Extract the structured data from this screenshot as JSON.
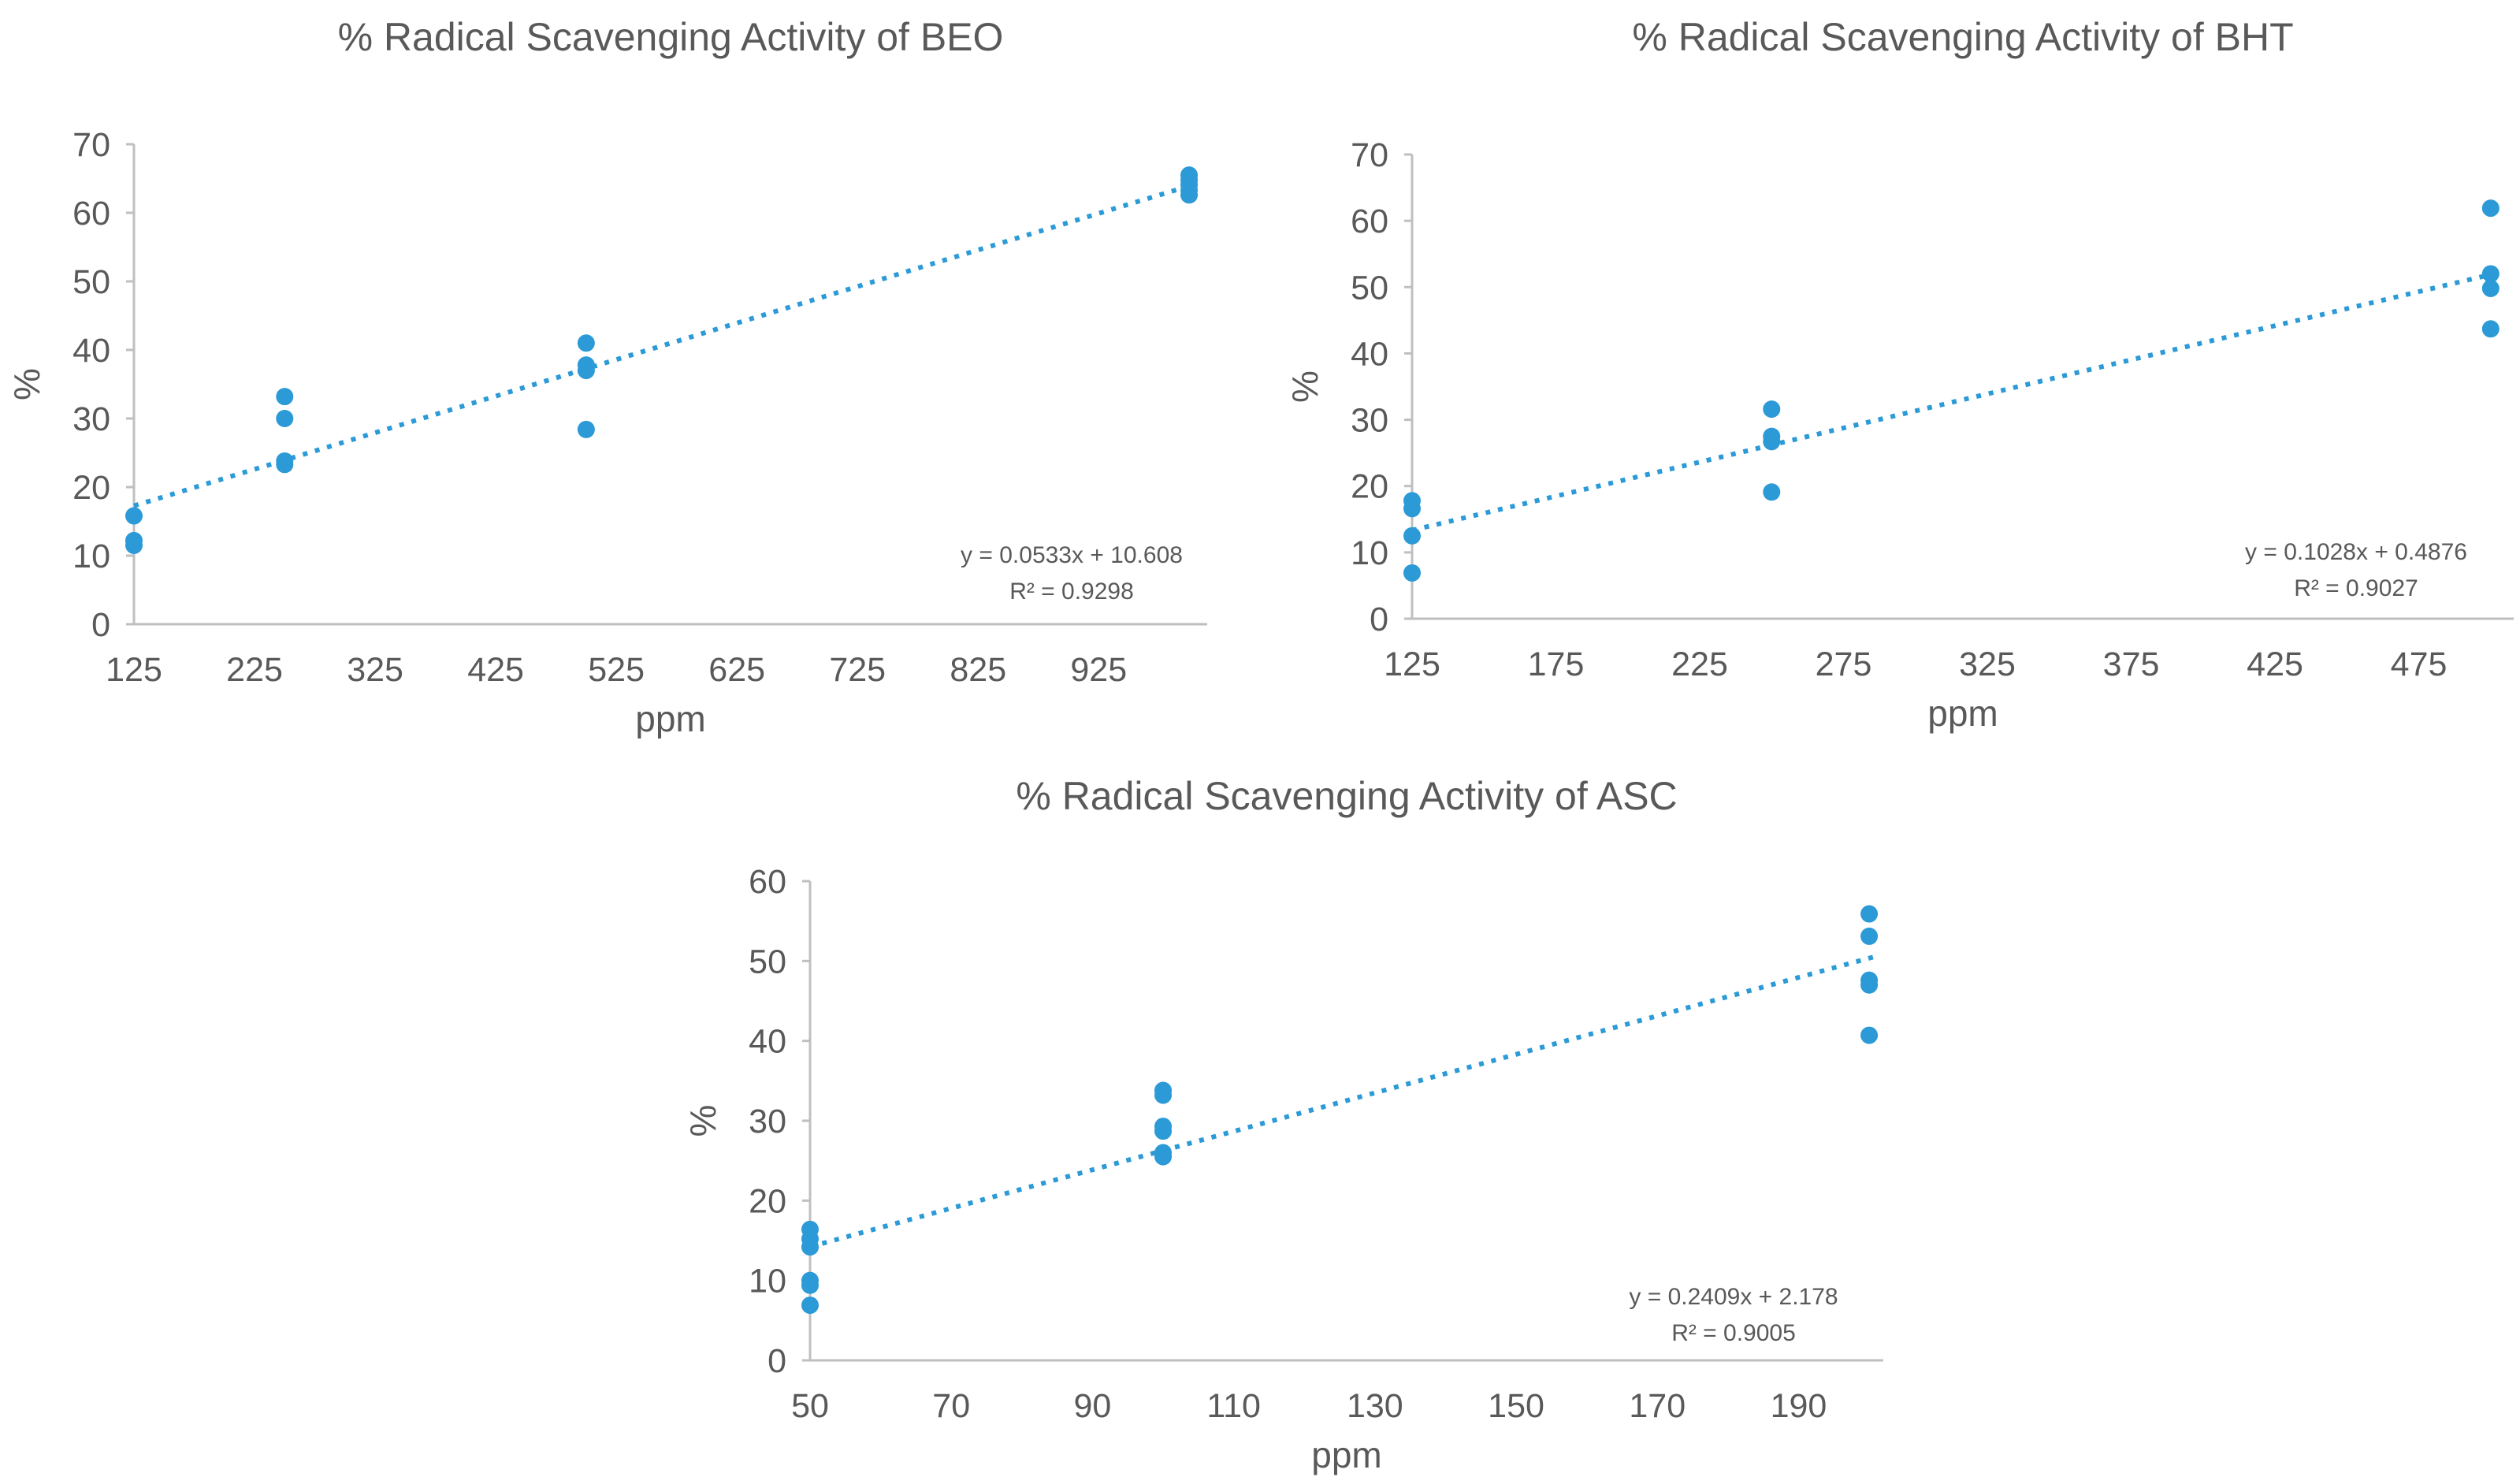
{
  "page": {
    "background": "#ffffff"
  },
  "colors": {
    "accent": "#2b9ad6",
    "text": "#595959",
    "axis_line": "#bfbfbf",
    "tick_text": "#595959"
  },
  "chart_data": [
    {
      "id": "beo",
      "type": "scatter",
      "title": "% Radical Scavenging Activity of BEO",
      "xlabel": "ppm",
      "ylabel": "%",
      "xlim": [
        125,
        1015
      ],
      "ylim": [
        0,
        70
      ],
      "xticks": [
        125,
        225,
        325,
        425,
        525,
        625,
        725,
        825,
        925
      ],
      "yticks": [
        0,
        10,
        20,
        30,
        40,
        50,
        60,
        70
      ],
      "grid": false,
      "legend": "none",
      "series": [
        {
          "name": "BEO",
          "points": [
            [
              125,
              15.8
            ],
            [
              125,
              12.2
            ],
            [
              125,
              11.5
            ],
            [
              250,
              33.2
            ],
            [
              250,
              30.0
            ],
            [
              250,
              23.8
            ],
            [
              250,
              23.3
            ],
            [
              500,
              41.0
            ],
            [
              500,
              37.8
            ],
            [
              500,
              37.0
            ],
            [
              500,
              28.4
            ],
            [
              1000,
              65.5
            ],
            [
              1000,
              64.8
            ],
            [
              1000,
              64.1
            ],
            [
              1000,
              63.3
            ],
            [
              1000,
              62.6
            ]
          ]
        }
      ],
      "trendline": {
        "slope": 0.0533,
        "intercept": 10.608,
        "x_range": [
          125,
          1005
        ],
        "style": "dotted"
      },
      "equation": "y = 0.0533x + 10.608",
      "r2_label": "R² = 0.9298"
    },
    {
      "id": "bht",
      "type": "scatter",
      "title": "% Radical Scavenging Activity of BHT",
      "xlabel": "ppm",
      "ylabel": "%",
      "xlim": [
        125,
        508
      ],
      "ylim": [
        0,
        70
      ],
      "xticks": [
        125,
        175,
        225,
        275,
        325,
        375,
        425,
        475
      ],
      "yticks": [
        0,
        10,
        20,
        30,
        40,
        50,
        60,
        70
      ],
      "grid": false,
      "legend": "none",
      "series": [
        {
          "name": "BHT",
          "points": [
            [
              125,
              17.8
            ],
            [
              125,
              16.6
            ],
            [
              125,
              12.5
            ],
            [
              125,
              6.9
            ],
            [
              250,
              31.6
            ],
            [
              250,
              27.5
            ],
            [
              250,
              26.7
            ],
            [
              250,
              19.1
            ],
            [
              500,
              61.9
            ],
            [
              500,
              52.0
            ],
            [
              500,
              49.8
            ],
            [
              500,
              43.7
            ]
          ]
        }
      ],
      "trendline": {
        "slope": 0.1028,
        "intercept": 0.4876,
        "x_range": [
          125,
          503
        ],
        "style": "dotted"
      },
      "equation": "y = 0.1028x + 0.4876",
      "r2_label": "R² = 0.9027"
    },
    {
      "id": "asc",
      "type": "scatter",
      "title": "% Radical Scavenging Activity of ASC",
      "xlabel": "ppm",
      "ylabel": "%",
      "xlim": [
        50,
        202
      ],
      "ylim": [
        0,
        60
      ],
      "xticks": [
        50,
        70,
        90,
        110,
        130,
        150,
        170,
        190
      ],
      "yticks": [
        0,
        10,
        20,
        30,
        40,
        50,
        60
      ],
      "grid": false,
      "legend": "none",
      "series": [
        {
          "name": "ASC",
          "points": [
            [
              50,
              16.4
            ],
            [
              50,
              15.2
            ],
            [
              50,
              14.2
            ],
            [
              50,
              10.0
            ],
            [
              50,
              9.4
            ],
            [
              50,
              6.9
            ],
            [
              100,
              33.8
            ],
            [
              100,
              33.2
            ],
            [
              100,
              29.3
            ],
            [
              100,
              28.7
            ],
            [
              100,
              26.0
            ],
            [
              100,
              25.5
            ],
            [
              200,
              55.9
            ],
            [
              200,
              53.1
            ],
            [
              200,
              47.6
            ],
            [
              200,
              47.0
            ],
            [
              200,
              40.7
            ]
          ]
        }
      ],
      "trendline": {
        "slope": 0.2409,
        "intercept": 2.178,
        "x_range": [
          50,
          201
        ],
        "style": "dotted"
      },
      "equation": "y = 0.2409x + 2.178",
      "r2_label": "R² = 0.9005"
    }
  ]
}
